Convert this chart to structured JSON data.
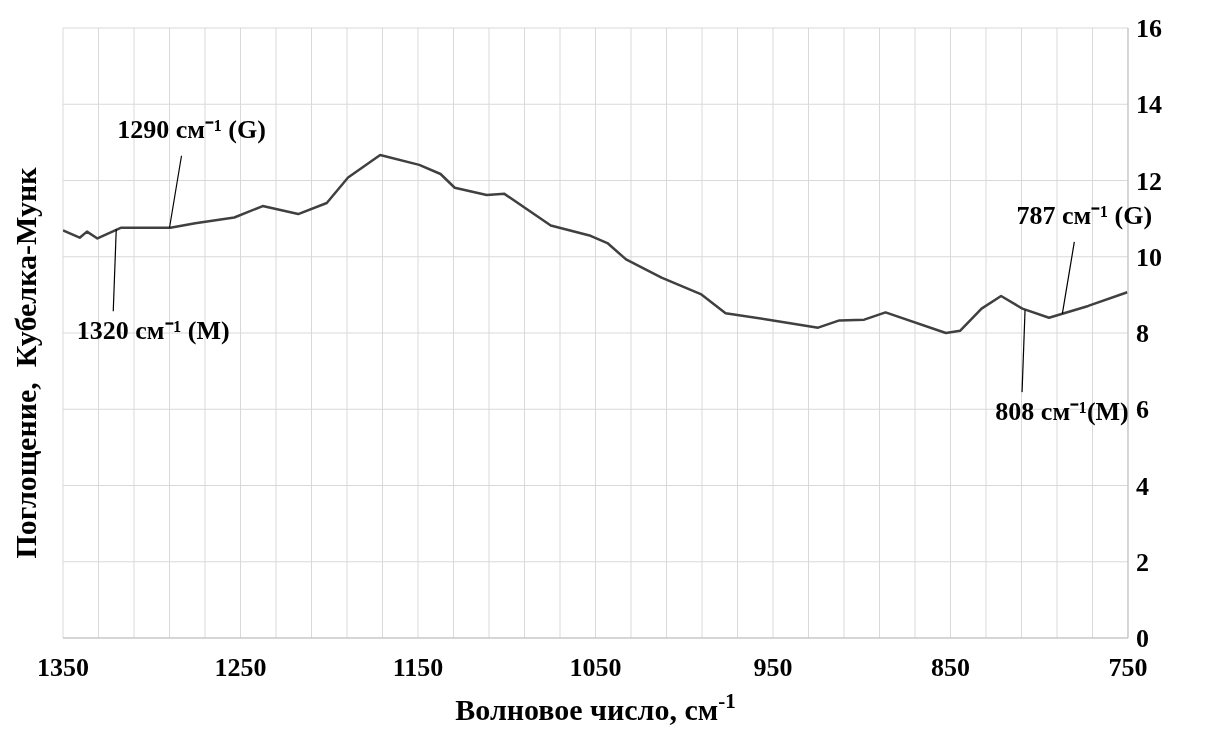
{
  "chart_data": {
    "type": "line",
    "xlabel": "Волновое число, см$^{-1}$",
    "ylabel": "Поглощение,  Кубелка-Мунк",
    "xlim": [
      1350,
      750
    ],
    "ylim": [
      0,
      16
    ],
    "xticks": [
      1350,
      {
        "value": 1330,
        "label": null
      },
      {
        "value": 1310,
        "label": null
      },
      {
        "value": 1290,
        "label": null
      },
      {
        "value": 1270,
        "label": null
      },
      1250,
      {
        "value": 1230,
        "label": null
      },
      {
        "value": 1210,
        "label": null
      },
      {
        "value": 1190,
        "label": null
      },
      {
        "value": 1170,
        "label": null
      },
      1150,
      {
        "value": 1130,
        "label": null
      },
      {
        "value": 1110,
        "label": null
      },
      {
        "value": 1090,
        "label": null
      },
      {
        "value": 1070,
        "label": null
      },
      1050,
      {
        "value": 1030,
        "label": null
      },
      {
        "value": 1010,
        "label": null
      },
      {
        "value": 990,
        "label": null
      },
      {
        "value": 970,
        "label": null
      },
      950,
      {
        "value": 930,
        "label": null
      },
      {
        "value": 910,
        "label": null
      },
      {
        "value": 890,
        "label": null
      },
      {
        "value": 870,
        "label": null
      },
      850,
      {
        "value": 830,
        "label": null
      },
      {
        "value": 810,
        "label": null
      },
      {
        "value": 790,
        "label": null
      },
      {
        "value": 770,
        "label": null
      },
      750
    ],
    "yticks": [
      0,
      2,
      4,
      6,
      8,
      10,
      12,
      14,
      16
    ],
    "grid": true,
    "marker": "none",
    "line_style": "solid",
    "series": [
      {
        "color": "#404040",
        "x": [
          1350,
          1340.6,
          1336.5,
          1330.6,
          1317.5,
          1289.5,
          1275.5,
          1253.5,
          1237.5,
          1217.5,
          1201.4,
          1189.4,
          1171.3,
          1149.3,
          1137.3,
          1129.3,
          1111.3,
          1101.3,
          1075.2,
          1052.8,
          1043.3,
          1032.8,
          1012.8,
          990.7,
          976.7,
          952.6,
          924.6,
          912.6,
          898.6,
          886.6,
          852.6,
          844.5,
          832.5,
          821.5,
          809.5,
          794.5,
          772.4,
          750.4
        ],
        "values": [
          10.69,
          10.5,
          10.66,
          10.48,
          10.76,
          10.76,
          10.88,
          11.03,
          11.33,
          11.12,
          11.41,
          12.08,
          12.67,
          12.41,
          12.17,
          11.81,
          11.62,
          11.65,
          10.82,
          10.55,
          10.36,
          9.93,
          9.45,
          9.02,
          8.52,
          8.35,
          8.14,
          8.33,
          8.35,
          8.54,
          8,
          8.06,
          8.64,
          8.97,
          8.64,
          8.4,
          8.71,
          9.07
        ]
      }
    ],
    "annotations": [
      {
        "text": "1290 см⁻¹ (G)",
        "x": 1290,
        "y": 10.76
      },
      {
        "text": "1320 см⁻¹ (M)",
        "x": 1320,
        "y": 10.72
      },
      {
        "text": "787 см⁻¹ (G)",
        "x": 787,
        "y": 8.5
      },
      {
        "text": "808 см⁻¹(M)",
        "x": 808,
        "y": 8.6
      }
    ]
  }
}
